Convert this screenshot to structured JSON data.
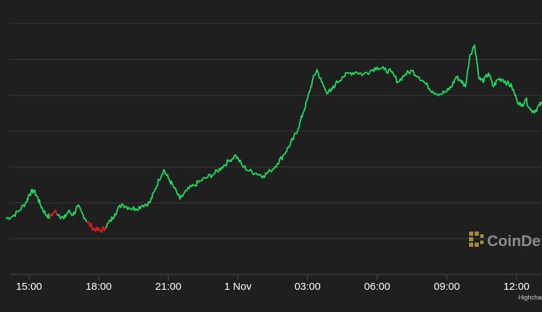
{
  "chart_data": {
    "type": "line",
    "title": "",
    "xlabel": "",
    "ylabel": "",
    "y_axis_labels_shown": false,
    "grid": "horizontal",
    "x_tick_labels": [
      "15:00",
      "18:00",
      "21:00",
      "1 Nov",
      "03:00",
      "06:00",
      "09:00",
      "12:00"
    ],
    "x_tick_hours": [
      15,
      18,
      21,
      24,
      27,
      30,
      33,
      36
    ],
    "xlim_hours": [
      13.75,
      37.1
    ],
    "ylim": [
      0,
      8
    ],
    "colors": {
      "up": "#1ed760",
      "down": "#e01e1e",
      "grid": "#3a3a3a",
      "background": "#1f1f1f"
    },
    "series": [
      {
        "x": [
          14.0,
          14.3,
          14.6,
          14.9,
          15.0,
          15.2,
          15.35,
          15.5,
          15.7,
          15.9,
          16.1,
          16.3,
          16.5,
          16.7,
          16.9,
          17.1,
          17.3,
          17.5,
          17.7,
          17.9,
          18.1,
          18.3,
          18.5,
          18.7,
          19.0,
          19.3,
          19.6,
          19.9,
          20.2,
          20.4,
          20.6,
          20.8,
          21.0,
          21.2,
          21.5,
          21.8,
          22.1,
          22.4,
          22.7,
          23.0,
          23.3,
          23.6,
          23.9,
          24.2,
          24.5,
          24.8,
          25.1,
          25.4,
          25.7,
          26.0,
          26.2,
          26.4,
          26.6,
          26.8,
          27.0,
          27.2,
          27.4,
          27.6,
          27.8,
          28.0,
          28.2,
          28.5,
          28.8,
          29.1,
          29.4,
          29.7,
          30.0,
          30.3,
          30.6,
          30.9,
          31.2,
          31.5,
          31.8,
          32.1,
          32.4,
          32.7,
          33.0,
          33.2,
          33.4,
          33.6,
          33.8,
          34.0,
          34.2,
          34.4,
          34.6,
          34.8,
          35.0,
          35.2,
          35.4,
          35.6,
          35.8,
          36.0,
          36.2,
          36.4,
          36.6,
          36.8,
          37.0,
          37.1
        ],
        "y": [
          0.9,
          1.0,
          1.25,
          1.6,
          1.9,
          2.05,
          1.8,
          1.45,
          1.1,
          0.95,
          1.2,
          1.05,
          0.9,
          1.2,
          1.05,
          1.4,
          1.1,
          0.8,
          0.55,
          0.45,
          0.4,
          0.55,
          0.8,
          1.1,
          1.5,
          1.35,
          1.3,
          1.45,
          1.55,
          2.0,
          2.5,
          2.9,
          2.55,
          2.25,
          1.7,
          2.05,
          2.25,
          2.45,
          2.6,
          2.75,
          3.0,
          3.25,
          3.5,
          3.05,
          2.85,
          2.75,
          2.65,
          2.85,
          3.15,
          3.55,
          3.85,
          4.2,
          4.6,
          5.2,
          5.8,
          6.5,
          7.0,
          6.5,
          6.1,
          6.1,
          6.4,
          6.7,
          6.85,
          6.9,
          6.8,
          6.95,
          7.1,
          7.0,
          6.9,
          6.5,
          6.8,
          6.95,
          6.7,
          6.4,
          6.1,
          6.0,
          6.1,
          6.3,
          6.7,
          6.55,
          6.3,
          7.6,
          8.0,
          6.6,
          6.55,
          6.85,
          6.3,
          6.6,
          6.6,
          6.45,
          6.3,
          5.8,
          5.5,
          5.8,
          5.35,
          5.3,
          5.55,
          5.6
        ],
        "down_segments": [
          [
            15.9,
            16.2
          ],
          [
            17.5,
            18.3
          ]
        ]
      }
    ],
    "credit": "Highcharts.com"
  },
  "watermark": {
    "text": "CoinDesk"
  }
}
